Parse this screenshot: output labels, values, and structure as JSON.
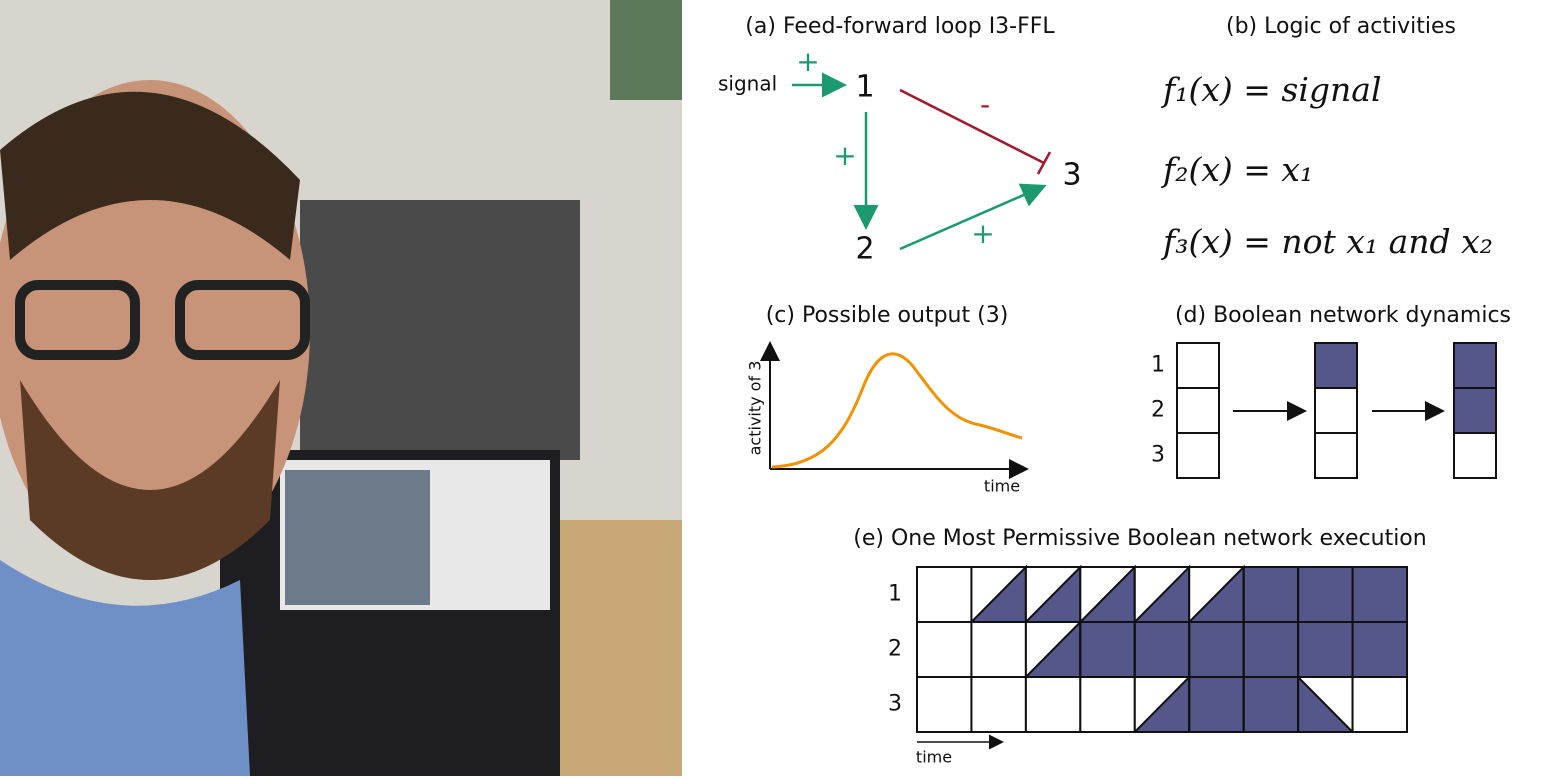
{
  "panels": {
    "a": {
      "title": "(a) Feed-forward loop I3-FFL",
      "signal": "signal",
      "nodes": [
        "1",
        "2",
        "3"
      ],
      "signs": [
        "+",
        "+",
        "-",
        "+"
      ]
    },
    "b": {
      "title": "(b) Logic of activities",
      "formulas": [
        "f₁(x) = signal",
        "f₂(x) = x₁",
        "f₃(x) = not x₁ and x₂"
      ]
    },
    "c": {
      "title": "(c) Possible output (3)",
      "y_label": "activity of 3",
      "x_label": "time"
    },
    "d": {
      "title": "(d) Boolean network dynamics",
      "rows": [
        "1",
        "2",
        "3"
      ],
      "states": [
        [
          0,
          0,
          0
        ],
        [
          1,
          0,
          0
        ],
        [
          1,
          1,
          0
        ]
      ]
    },
    "e": {
      "title": "(e) One Most Permissive Boolean network execution",
      "rows": [
        "1",
        "2",
        "3"
      ],
      "x_label": "time",
      "cells": [
        [
          [
            0,
            0
          ],
          [
            0,
            1
          ],
          [
            0,
            1
          ],
          [
            0,
            1
          ],
          [
            0,
            1
          ],
          [
            0,
            1
          ],
          [
            1,
            1
          ],
          [
            1,
            1
          ],
          [
            1,
            1
          ]
        ],
        [
          [
            0,
            0
          ],
          [
            0,
            0
          ],
          [
            0,
            1
          ],
          [
            1,
            1
          ],
          [
            1,
            1
          ],
          [
            1,
            1
          ],
          [
            1,
            1
          ],
          [
            1,
            1
          ],
          [
            1,
            1
          ]
        ],
        [
          [
            0,
            0
          ],
          [
            0,
            0
          ],
          [
            0,
            0
          ],
          [
            0,
            0
          ],
          [
            0,
            1
          ],
          [
            1,
            1
          ],
          [
            1,
            1
          ],
          [
            1,
            0
          ],
          [
            0,
            0
          ]
        ]
      ]
    }
  },
  "fill_color": "#55578b"
}
